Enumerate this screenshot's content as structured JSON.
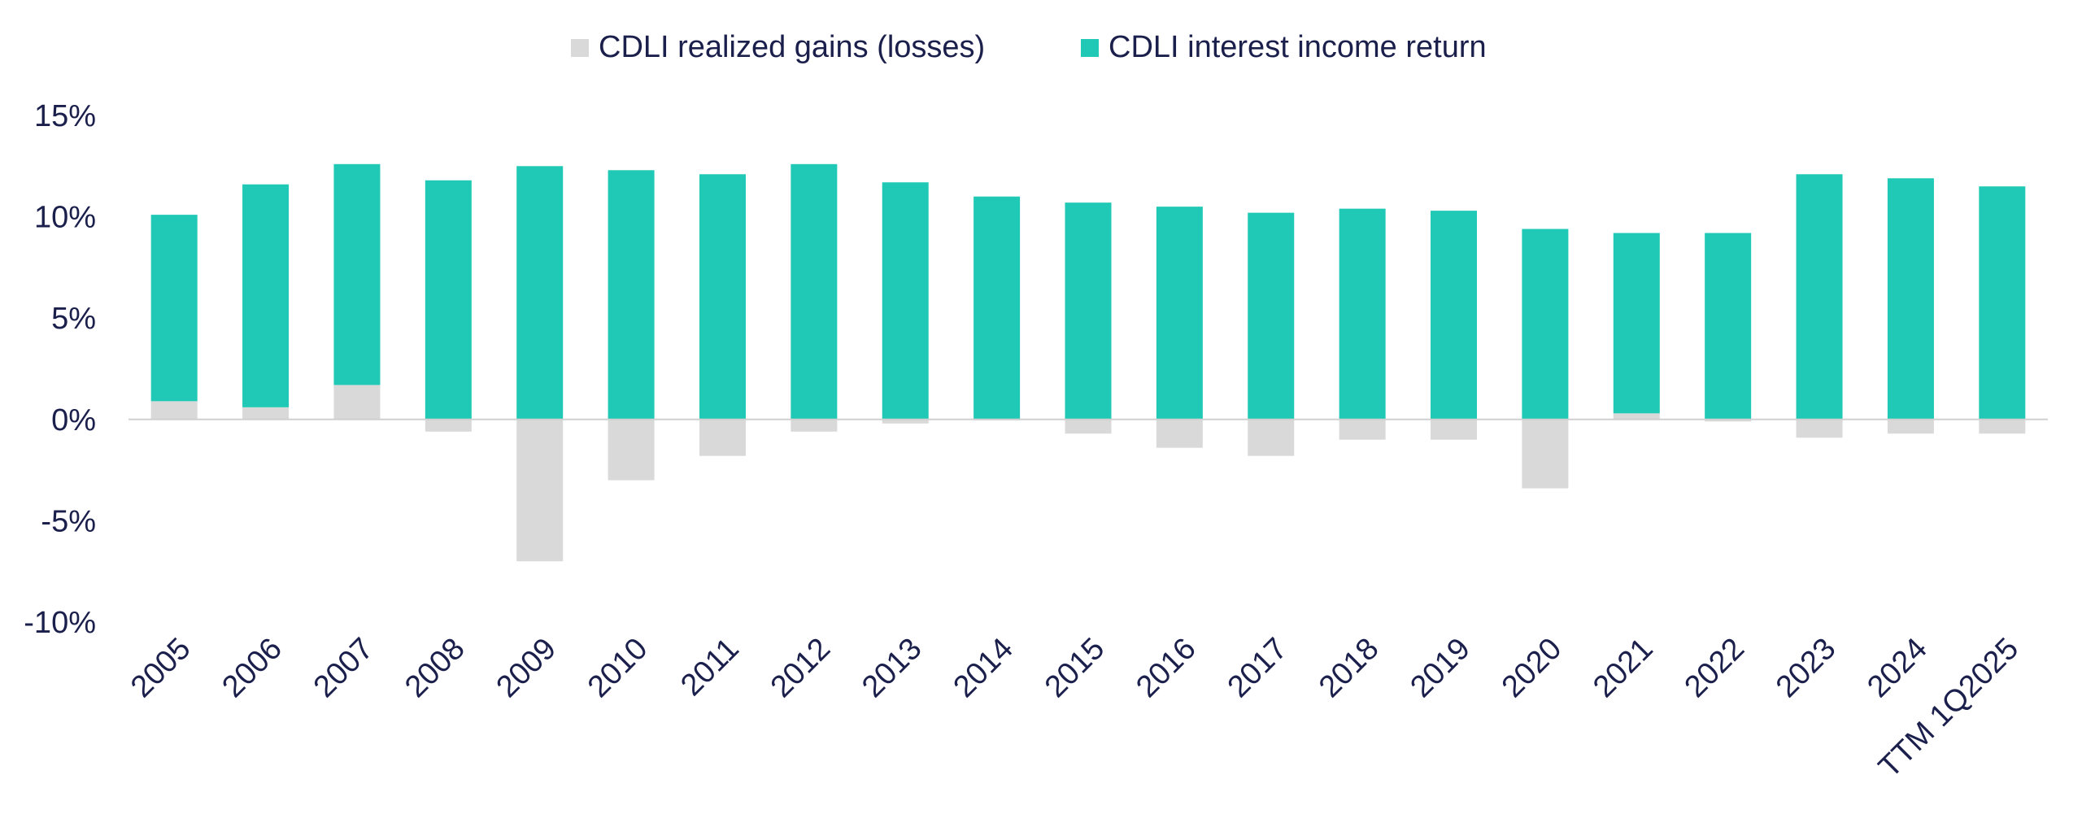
{
  "chart_data": {
    "type": "bar",
    "stacked": true,
    "title": "",
    "xlabel": "",
    "ylabel": "",
    "categories": [
      "2005",
      "2006",
      "2007",
      "2008",
      "2009",
      "2010",
      "2011",
      "2012",
      "2013",
      "2014",
      "2015",
      "2016",
      "2017",
      "2018",
      "2019",
      "2020",
      "2021",
      "2022",
      "2023",
      "2024",
      "TTM 1Q2025"
    ],
    "series": [
      {
        "name": "CDLI realized gains (losses)",
        "color": "#d9d9d9",
        "values": [
          0.9,
          0.6,
          1.7,
          -0.6,
          -7.0,
          -3.0,
          -1.8,
          -0.6,
          -0.2,
          -0.05,
          -0.7,
          -1.4,
          -1.8,
          -1.0,
          -1.0,
          -3.4,
          0.3,
          -0.1,
          -0.9,
          -0.7,
          -0.7
        ]
      },
      {
        "name": "CDLI interest income return",
        "color": "#20c9b5",
        "values": [
          9.2,
          11.0,
          10.9,
          11.8,
          12.5,
          12.3,
          12.1,
          12.6,
          11.7,
          11.0,
          10.7,
          10.5,
          10.2,
          10.4,
          10.3,
          9.4,
          8.9,
          9.2,
          12.1,
          11.9,
          11.5
        ]
      }
    ],
    "ylim": [
      -10,
      15
    ],
    "yticks": [
      15,
      10,
      5,
      0,
      -5,
      -10
    ],
    "ytick_labels": [
      "15%",
      "10%",
      "5%",
      "0%",
      "-5%",
      "-10%"
    ],
    "grid": false,
    "legend": "top-center"
  }
}
